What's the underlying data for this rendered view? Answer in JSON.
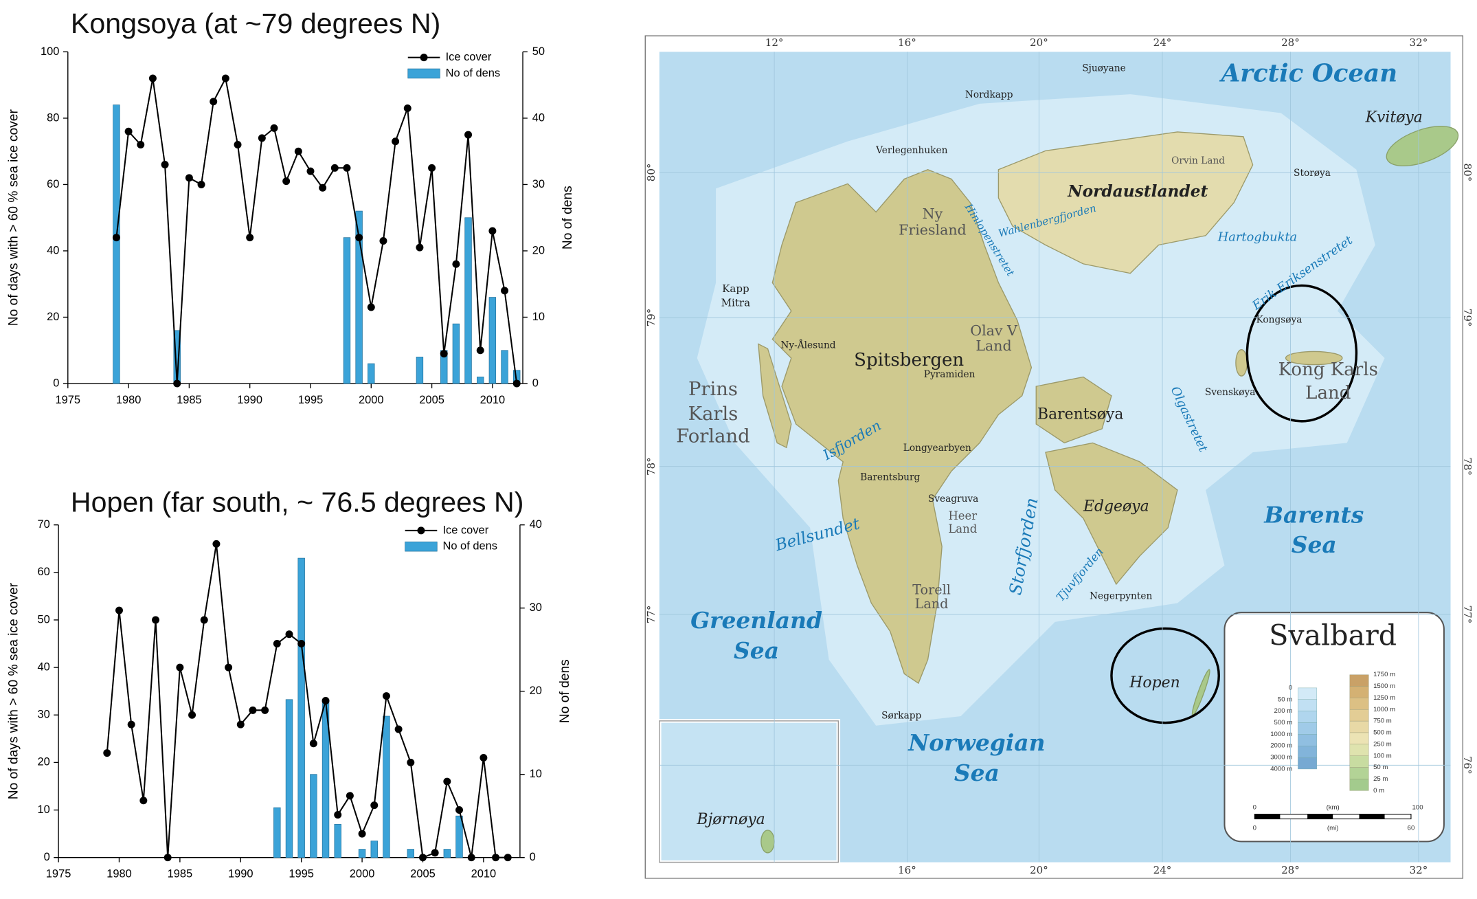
{
  "chart_data": [
    {
      "type": "line_bar",
      "title": "Kongsoya (at ~79 degrees N)",
      "ylabel": "No of days with > 60 % sea ice cover",
      "y2label": "No of dens",
      "legend": "upper right",
      "x": [
        1979,
        1980,
        1981,
        1982,
        1983,
        1984,
        1985,
        1986,
        1987,
        1988,
        1989,
        1990,
        1991,
        1992,
        1993,
        1994,
        1995,
        1996,
        1997,
        1998,
        1999,
        2000,
        2001,
        2002,
        2003,
        2004,
        2005,
        2006,
        2007,
        2008,
        2009,
        2010,
        2011,
        2012
      ],
      "series": [
        {
          "name": "Ice cover",
          "type": "line",
          "color": "#000000",
          "values": [
            44,
            76,
            72,
            92,
            66,
            0,
            62,
            60,
            85,
            92,
            72,
            44,
            74,
            77,
            61,
            70,
            64,
            59,
            65,
            65,
            44,
            23,
            43,
            73,
            83,
            41,
            65,
            9,
            36,
            75,
            10,
            46,
            28,
            0
          ]
        },
        {
          "name": "No of dens",
          "type": "bar",
          "axis": "y2",
          "color": "#3ba3d8",
          "values": [
            42,
            0,
            0,
            0,
            0,
            8,
            0,
            0,
            0,
            0,
            0,
            0,
            0,
            0,
            0,
            0,
            0,
            0,
            0,
            22,
            26,
            3,
            0,
            0,
            0,
            4,
            0,
            5,
            9,
            25,
            1,
            13,
            5,
            2
          ]
        }
      ],
      "xlim": [
        1975,
        2012.5
      ],
      "xticks": [
        1975,
        1980,
        1985,
        1990,
        1995,
        2000,
        2005,
        2010
      ],
      "ylim": [
        0,
        100
      ],
      "yticks": [
        0,
        20,
        40,
        60,
        80,
        100
      ],
      "y2lim": [
        0,
        50
      ],
      "y2ticks": [
        0,
        10,
        20,
        30,
        40,
        50
      ]
    },
    {
      "type": "line_bar",
      "title": "Hopen (far south, ~ 76.5 degrees N)",
      "ylabel": "No of days with > 60 % sea ice cover",
      "y2label": "No of dens",
      "legend": "upper right",
      "x": [
        1979,
        1980,
        1981,
        1982,
        1983,
        1984,
        1985,
        1986,
        1987,
        1988,
        1989,
        1990,
        1991,
        1992,
        1993,
        1994,
        1995,
        1996,
        1997,
        1998,
        1999,
        2000,
        2001,
        2002,
        2003,
        2004,
        2005,
        2006,
        2007,
        2008,
        2009,
        2010,
        2011,
        2012
      ],
      "series": [
        {
          "name": "Ice cover",
          "type": "line",
          "color": "#000000",
          "values": [
            22,
            52,
            28,
            12,
            50,
            0,
            40,
            30,
            50,
            66,
            40,
            28,
            31,
            31,
            45,
            47,
            45,
            24,
            33,
            9,
            13,
            5,
            11,
            34,
            27,
            20,
            0,
            1,
            16,
            10,
            0,
            21,
            0,
            0
          ]
        },
        {
          "name": "No of dens",
          "type": "bar",
          "axis": "y2",
          "color": "#3ba3d8",
          "values": [
            0,
            0,
            0,
            0,
            0,
            0,
            0,
            0,
            0,
            0,
            0,
            0,
            0,
            0,
            6,
            19,
            36,
            10,
            19,
            4,
            0,
            1,
            2,
            17,
            0,
            1,
            0,
            0,
            1,
            5,
            0,
            0,
            0,
            0
          ]
        }
      ],
      "xlim": [
        1975,
        2013
      ],
      "xticks": [
        1975,
        1980,
        1985,
        1990,
        1995,
        2000,
        2005,
        2010
      ],
      "ylim": [
        0,
        70
      ],
      "yticks": [
        0,
        10,
        20,
        30,
        40,
        50,
        60,
        70
      ],
      "y2lim": [
        0,
        40
      ],
      "y2ticks": [
        0,
        10,
        20,
        30,
        40
      ]
    }
  ],
  "map": {
    "lon_ticks": [
      "12°",
      "16°",
      "20°",
      "24°",
      "28°",
      "32°"
    ],
    "lat_ticks": [
      "80°",
      "79°",
      "78°",
      "77°",
      "76°"
    ],
    "labels": [
      "Arctic Ocean",
      "Kvitøya",
      "Nordaustlandet",
      "Spitsbergen",
      "Barentsøya",
      "Edgeøya",
      "Prins",
      "Karls",
      "Forland",
      "Barents",
      "Sea",
      "Greenland",
      "Sea",
      "Norwegian",
      "Sea",
      "Kong Karls",
      "Land",
      "Hopen",
      "Kongsøya",
      "Svenskøya",
      "Bjørnøya",
      "Longyearbyen",
      "Ny-Ålesund",
      "Barentsburg",
      "Sveagruva",
      "Pyramiden",
      "Storfjorden",
      "Hinlopenstretet",
      "Isfjorden",
      "Bellsundet",
      "Olav V",
      "Land",
      "Ny",
      "Friesland",
      "Sjuøyane",
      "Nordkapp",
      "Verlegenhuken",
      "Storøya",
      "Orvin Land",
      "Hartogbukta",
      "Erik Eriksenstretet",
      "Olgastretet",
      "Sørkapp",
      "Negerpynten",
      "Tjuvfjorden",
      "Wahlenbergfjorden",
      "Torell",
      "Land",
      "Heer",
      "Land",
      "Kapp",
      "Mitra"
    ],
    "legend": {
      "title": "Svalbard",
      "depths": [
        "0",
        "50 m",
        "200 m",
        "500 m",
        "1000 m",
        "2000 m",
        "3000 m",
        "4000 m"
      ],
      "elevations": [
        "1750 m",
        "1500 m",
        "1250 m",
        "1000 m",
        "750 m",
        "500 m",
        "250 m",
        "100 m",
        "50 m",
        "25 m",
        "0 m"
      ],
      "scale": [
        "0",
        "(km)",
        "100",
        "0",
        "(mi)",
        "60"
      ]
    }
  }
}
